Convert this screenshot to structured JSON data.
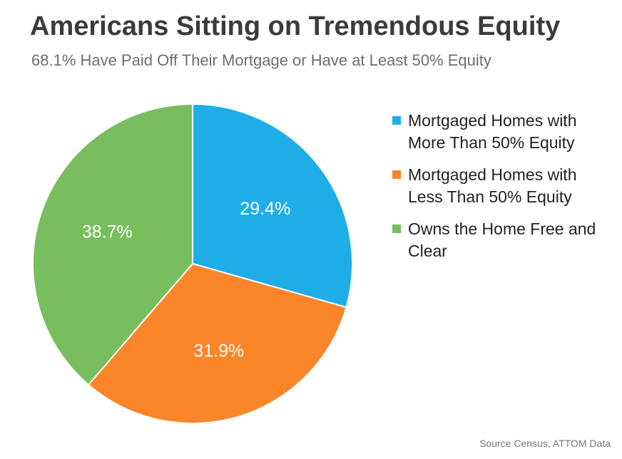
{
  "title": "Americans Sitting on Tremendous Equity",
  "subtitle": "68.1% Have Paid Off Their Mortgage or Have at Least 50% Equity",
  "source": "Source  Census, ATTOM Data",
  "chart_data": {
    "type": "pie",
    "title": "Americans Sitting on Tremendous Equity",
    "subtitle": "68.1% Have Paid Off Their Mortgage or Have at Least 50% Equity",
    "start_angle_deg": 0,
    "direction": "clockwise",
    "legend_position": "right",
    "slices": [
      {
        "label": "Mortgaged Homes with More Than 50% Equity",
        "value": 29.4,
        "value_label": "29.4%",
        "color": "#1fade8"
      },
      {
        "label": "Mortgaged Homes with Less Than 50% Equity",
        "value": 31.9,
        "value_label": "31.9%",
        "color": "#fb8529"
      },
      {
        "label": "Owns the Home Free and Clear",
        "value": 38.7,
        "value_label": "38.7%",
        "color": "#78be5e"
      }
    ]
  }
}
